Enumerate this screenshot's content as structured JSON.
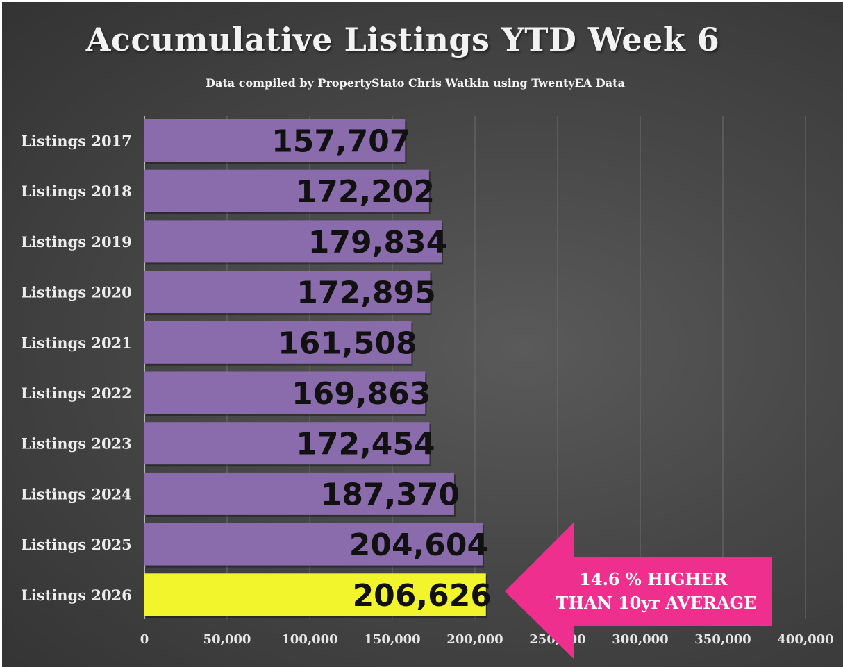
{
  "chart_data": {
    "type": "bar",
    "orientation": "horizontal",
    "title": "Accumulative Listings YTD Week 6",
    "subtitle": "Data compiled by PropertyStato Chris Watkin using TwentyEA Data",
    "categories": [
      "Listings 2017",
      "Listings 2018",
      "Listings 2019",
      "Listings 2020",
      "Listings 2021",
      "Listings 2022",
      "Listings 2023",
      "Listings 2024",
      "Listings 2025",
      "Listings 2026"
    ],
    "values": [
      157707,
      172202,
      179834,
      172895,
      161508,
      169863,
      172454,
      187370,
      204604,
      206626
    ],
    "data_labels": [
      "157,707",
      "172,202",
      "179,834",
      "172,895",
      "161,508",
      "169,863",
      "172,454",
      "187,370",
      "204,604",
      "206,626"
    ],
    "xlim": [
      0,
      400000
    ],
    "xticks": [
      0,
      50000,
      100000,
      150000,
      200000,
      250000,
      300000,
      350000,
      400000
    ],
    "xtick_labels": [
      "0",
      "50,000",
      "100,000",
      "150,000",
      "200,000",
      "250,000",
      "300,000",
      "350,000",
      "400,000"
    ],
    "grid": "vertical",
    "colors": {
      "bar": "#8a6bab",
      "highlight_bar": "#f3f52c",
      "callout": "#ef2f8d",
      "background": "#4a4a4a"
    },
    "highlight_index": 9,
    "annotation": {
      "line1": "14.6 % HIGHER",
      "line2": "THAN 10yr AVERAGE"
    }
  }
}
